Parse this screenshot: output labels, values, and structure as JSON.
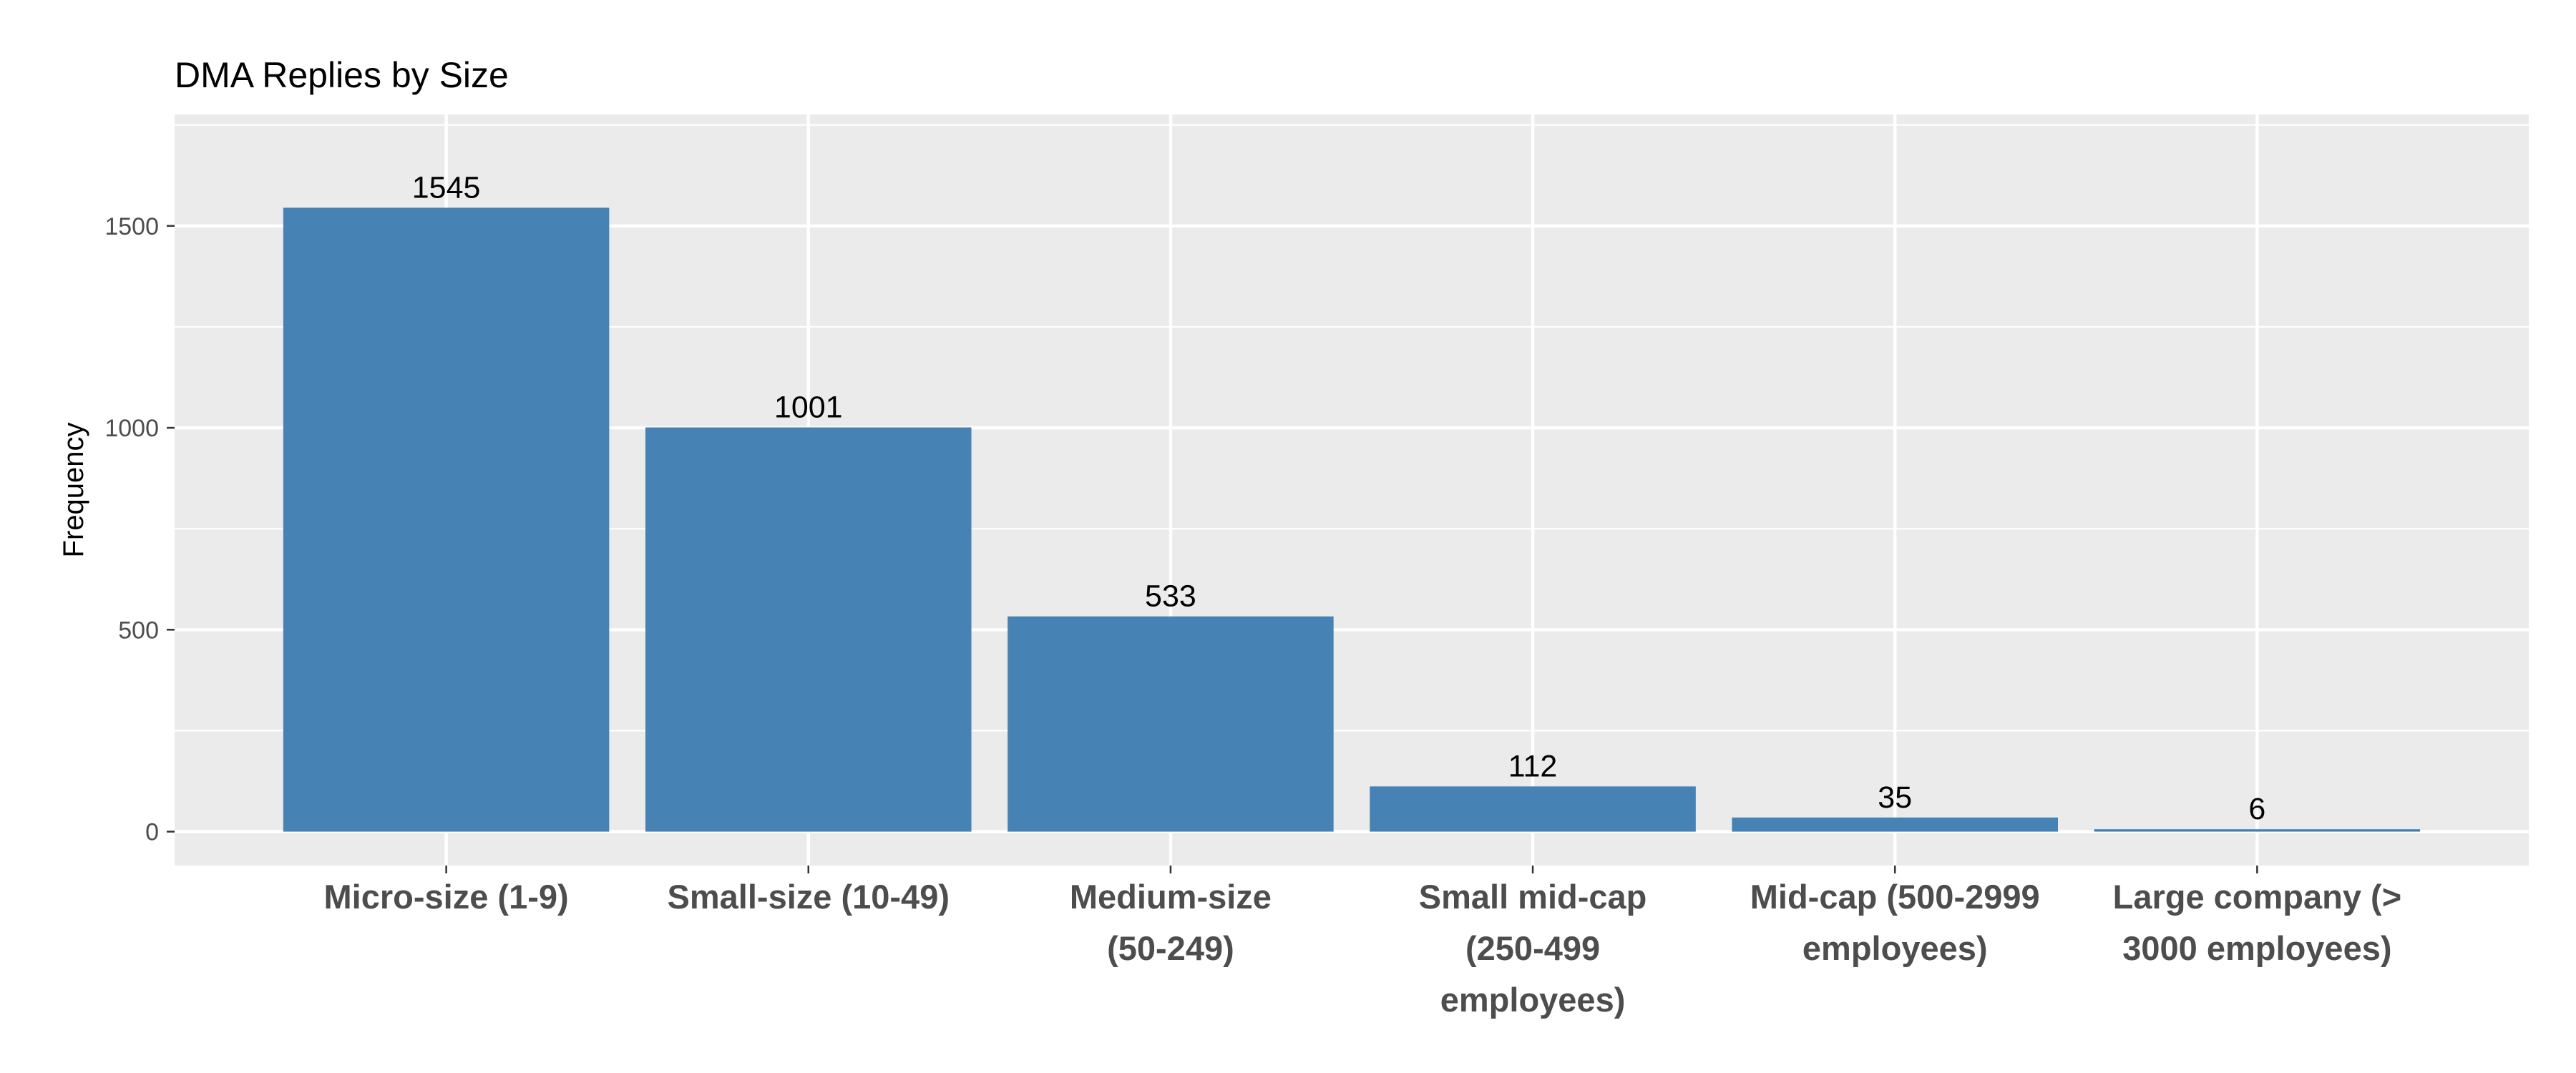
{
  "chart_data": {
    "type": "bar",
    "title": "DMA Replies by Size",
    "xlabel": "",
    "ylabel": "Frequency",
    "categories": [
      [
        "Micro-size (1-9)"
      ],
      [
        "Small-size (10-49)"
      ],
      [
        "Medium-size",
        "(50-249)"
      ],
      [
        "Small mid-cap",
        "(250-499",
        "employees)"
      ],
      [
        "Mid-cap (500-2999",
        "employees)"
      ],
      [
        "Large company (>",
        "3000 employees)"
      ]
    ],
    "values": [
      1545,
      1001,
      533,
      112,
      35,
      6
    ],
    "data_labels": [
      "1545",
      "1001",
      "533",
      "112",
      "35",
      "6"
    ],
    "yticks": [
      0,
      500,
      1000,
      1500
    ],
    "ytick_labels": [
      "0",
      "500",
      "1000",
      "1500"
    ],
    "ylim": [
      -84,
      1776
    ],
    "grid": true,
    "legend": "none",
    "colors": {
      "bar": "#4682b4",
      "panel": "#ebebeb",
      "grid": "#ffffff"
    }
  }
}
